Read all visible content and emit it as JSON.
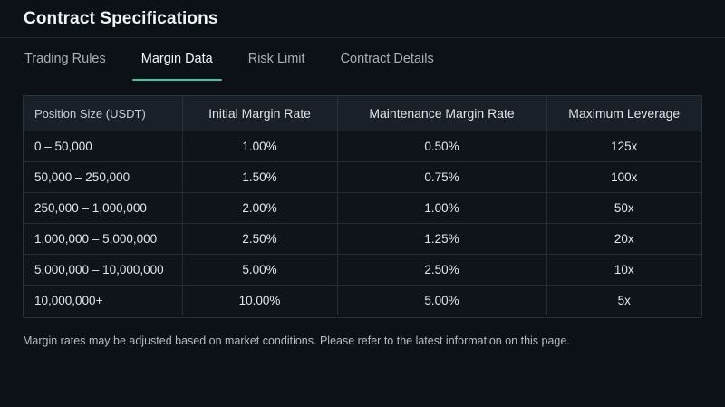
{
  "header": {
    "title": "Contract Specifications"
  },
  "tabs": [
    {
      "label": "Trading Rules",
      "active": false
    },
    {
      "label": "Margin Data",
      "active": true
    },
    {
      "label": "Risk Limit",
      "active": false
    },
    {
      "label": "Contract Details",
      "active": false
    }
  ],
  "accent_color": "#3ac79c",
  "table": {
    "columns": [
      "Position Size (USDT)",
      "Initial Margin Rate",
      "Maintenance Margin Rate",
      "Maximum Leverage"
    ],
    "rows": [
      [
        "0 – 50,000",
        "1.00%",
        "0.50%",
        "125x"
      ],
      [
        "50,000 – 250,000",
        "1.50%",
        "0.75%",
        "100x"
      ],
      [
        "250,000 – 1,000,000",
        "2.00%",
        "1.00%",
        "50x"
      ],
      [
        "1,000,000 – 5,000,000",
        "2.50%",
        "1.25%",
        "20x"
      ],
      [
        "5,000,000 – 10,000,000",
        "5.00%",
        "2.50%",
        "10x"
      ],
      [
        "10,000,000+",
        "10.00%",
        "5.00%",
        "5x"
      ]
    ]
  },
  "footer": {
    "note": "Margin rates may be adjusted based on market conditions. Please refer to the latest information on this page."
  }
}
